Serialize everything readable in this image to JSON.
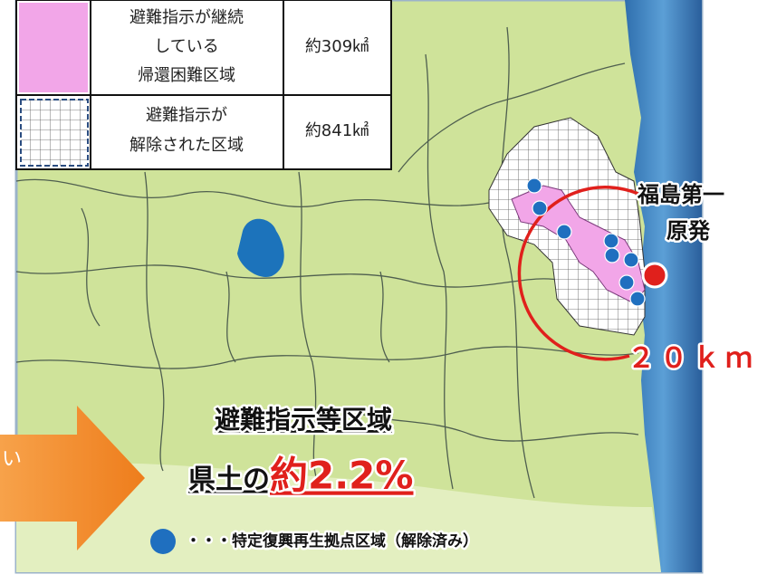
{
  "legend": [
    {
      "lines": [
        "避難指示が継続",
        "している",
        "帰還困難区域"
      ],
      "area": "約309㎢"
    },
    {
      "lines": [
        "避難指示が",
        "解除された区域"
      ],
      "area": "約841㎢"
    }
  ],
  "plant": {
    "lines": [
      "福島第一",
      "原発"
    ]
  },
  "radius": "２０ｋｍ",
  "summary": {
    "heading": "避難指示等区域",
    "prefix": "県土の",
    "share": "約2.2%"
  },
  "marker_note": "・・・特定復興再生拠点区域（解除済み）",
  "arrow_text": "い"
}
